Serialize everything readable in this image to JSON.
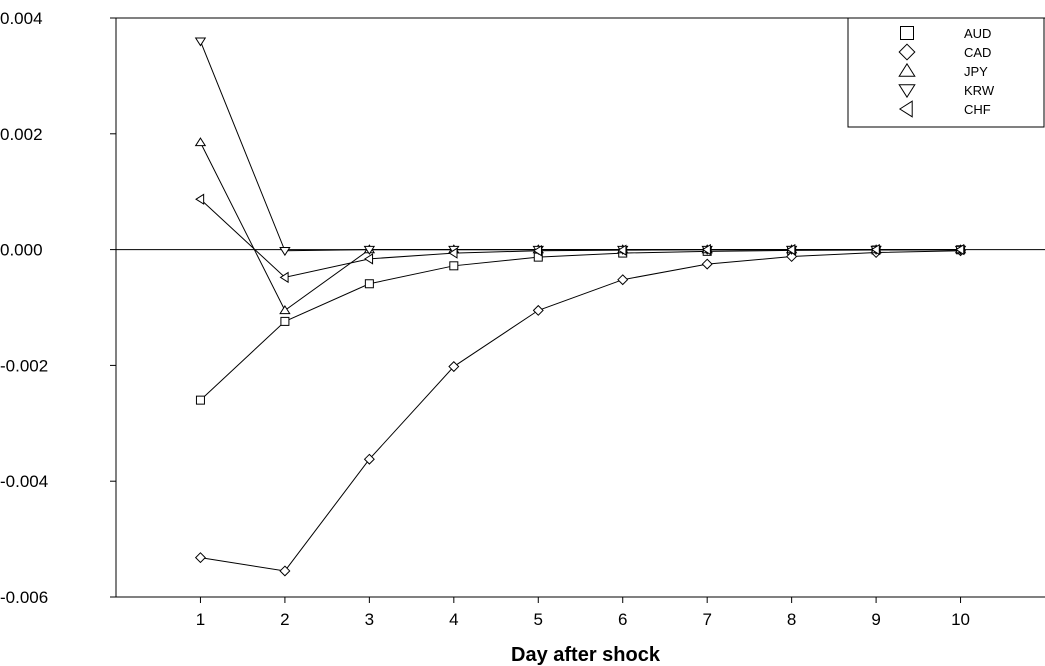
{
  "chart_data": {
    "type": "line",
    "xlabel": "Day after shock",
    "ylabel": "",
    "x": [
      1,
      2,
      3,
      4,
      5,
      6,
      7,
      8,
      9,
      10
    ],
    "xlim": [
      0,
      11
    ],
    "ylim": [
      -0.006,
      0.004
    ],
    "yticks": [
      "0.004",
      "0.002",
      "0.000",
      "-0.002",
      "-0.004",
      "-0.006"
    ],
    "ytick_values": [
      0.004,
      0.002,
      0.0,
      -0.002,
      -0.004,
      -0.006
    ],
    "xticks": [
      "1",
      "2",
      "3",
      "4",
      "5",
      "6",
      "7",
      "8",
      "9",
      "10"
    ],
    "zero_line": true,
    "legend_position": "top-right",
    "series": [
      {
        "name": "AUD",
        "marker": "square",
        "values": [
          -0.0026,
          -0.00124,
          -0.00059,
          -0.00028,
          -0.00013,
          -6e-05,
          -3e-05,
          -1.4e-05,
          -7e-06,
          -3e-06
        ]
      },
      {
        "name": "CAD",
        "marker": "diamond",
        "values": [
          -0.00532,
          -0.00555,
          -0.00362,
          -0.00202,
          -0.00105,
          -0.00052,
          -0.00025,
          -0.00012,
          -5e-05,
          -2e-05
        ]
      },
      {
        "name": "JPY",
        "marker": "triangle-up",
        "values": [
          0.00185,
          -0.00105,
          0.0,
          0.0,
          0.0,
          0.0,
          0.0,
          0.0,
          0.0,
          0.0
        ]
      },
      {
        "name": "KRW",
        "marker": "triangle-down",
        "values": [
          0.0036,
          -2e-05,
          0.0,
          0.0,
          0.0,
          0.0,
          0.0,
          0.0,
          0.0,
          0.0
        ]
      },
      {
        "name": "CHF",
        "marker": "triangle-left",
        "values": [
          0.00087,
          -0.00048,
          -0.00016,
          -6e-05,
          -2e-05,
          -1e-05,
          0.0,
          0.0,
          0.0,
          0.0
        ]
      }
    ]
  }
}
